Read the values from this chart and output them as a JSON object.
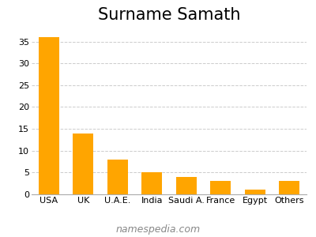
{
  "title": "Surname Samath",
  "categories": [
    "USA",
    "UK",
    "U.A.E.",
    "India",
    "Saudi A.",
    "France",
    "Egypt",
    "Others"
  ],
  "values": [
    36,
    14,
    8,
    5,
    4,
    3,
    1,
    3
  ],
  "bar_color": "#FFA500",
  "ylim": [
    0,
    38
  ],
  "yticks": [
    0,
    5,
    10,
    15,
    20,
    25,
    30,
    35
  ],
  "grid_color": "#cccccc",
  "background_color": "#ffffff",
  "title_fontsize": 15,
  "tick_fontsize": 8,
  "footer_text": "namespedia.com",
  "footer_fontsize": 9,
  "footer_color": "#888888"
}
